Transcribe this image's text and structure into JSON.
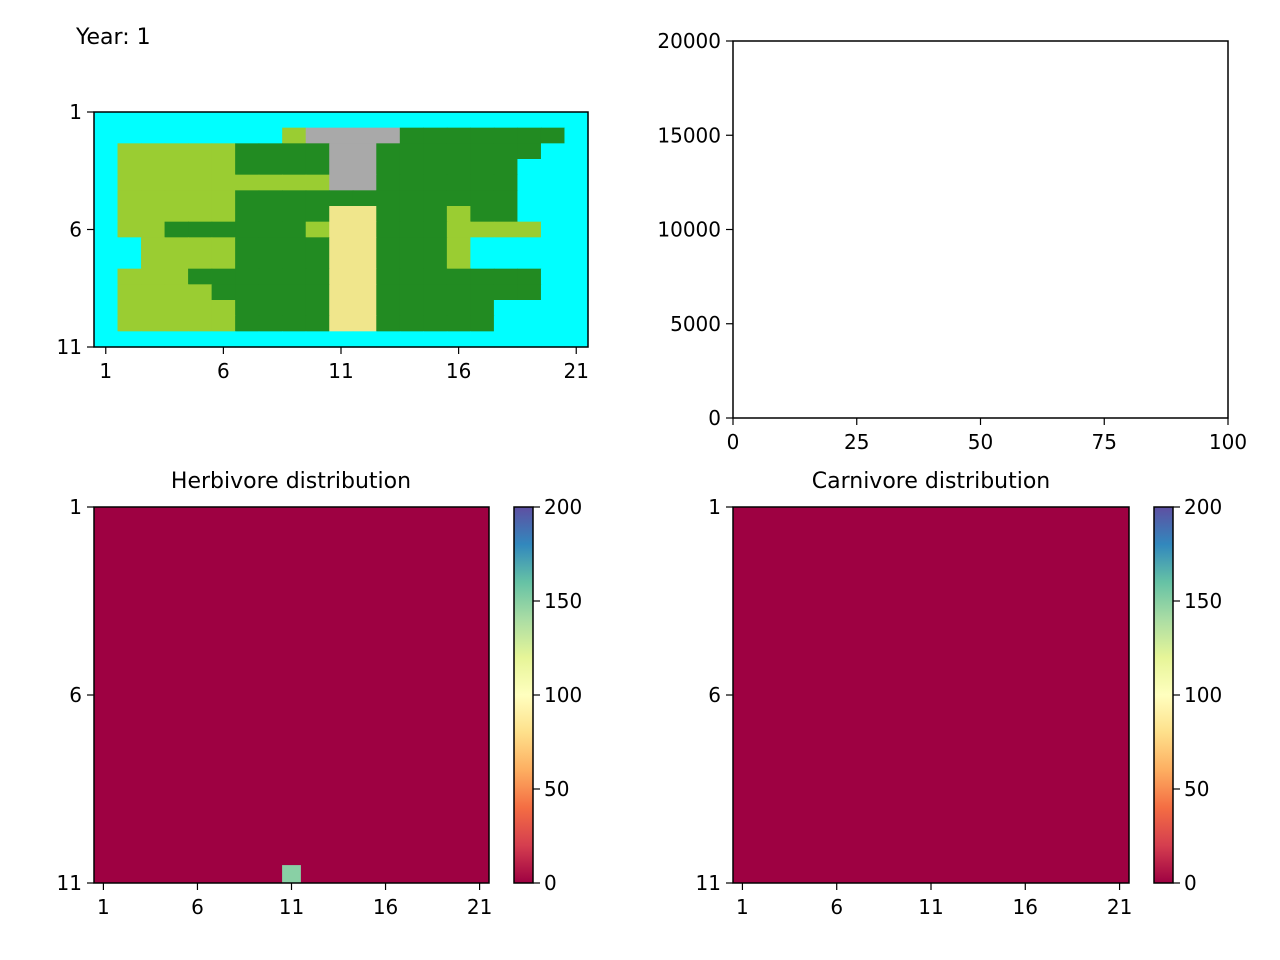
{
  "year_label": "Year: 1",
  "colors": {
    "water": "#00ffff",
    "lowland": "#228b22",
    "highland": "#9acd32",
    "mountain": "#a9a9a9",
    "desert": "#f0e68c"
  },
  "chart_data": [
    {
      "type": "heatmap",
      "id": "island-map",
      "title": "",
      "xticks": [
        "1",
        "6",
        "11",
        "16",
        "21"
      ],
      "yticks": [
        "1",
        "6",
        "11"
      ],
      "legend": {
        "W": "water",
        "L": "lowland",
        "H": "highland",
        "M": "mountain",
        "D": "desert"
      },
      "grid": [
        "WWWWWWWWWWWWWWWWWWWWW",
        "WWWWWWWWHMMMMLLLLLLLW",
        "WHHHHHLLLLMMLLLLLLLWW",
        "WHHHHHLLLLMMLLLLLLWWW",
        "WHHHHHHHHHMMLLLLLLWWW",
        "WHHHHHLLLLLLLLLLLLWWW",
        "WHHHHHLLLLDDLLLHLLWWW",
        "WHHLLLLLLHDDLLLHHHHWW",
        "WWHHHHLLLLDDLLLHWWWWW",
        "WWHHHHLLLLDDLLLHWWWWW",
        "WHHHLLLLLLDDLLLLLLLWW",
        "WHHHHLLLLLDDLLLLLLLWW",
        "WHHHHHLLLLDDLLLLLWWWW",
        "WHHHHHLLLLDDLLLLLWWWW",
        "WWWWWWWWWWWWWWWWWWWWW"
      ]
    },
    {
      "type": "line",
      "id": "population-plot",
      "title": "",
      "xlim": [
        0,
        100
      ],
      "ylim": [
        0,
        20000
      ],
      "xticks": [
        "0",
        "25",
        "50",
        "75",
        "100"
      ],
      "yticks": [
        "0",
        "5000",
        "10000",
        "15000",
        "20000"
      ],
      "series": []
    },
    {
      "type": "heatmap",
      "id": "herbivore-distribution",
      "title": "Herbivore distribution",
      "xticks": [
        "1",
        "6",
        "11",
        "16",
        "21"
      ],
      "yticks": [
        "1",
        "6",
        "11"
      ],
      "vmin": 0,
      "vmax": 200,
      "colorbar_ticks": [
        "0",
        "50",
        "100",
        "150",
        "200"
      ],
      "background_value": 0,
      "cells": [
        {
          "row": 11,
          "col": 11,
          "value": 150
        }
      ]
    },
    {
      "type": "heatmap",
      "id": "carnivore-distribution",
      "title": "Carnivore distribution",
      "xticks": [
        "1",
        "6",
        "11",
        "16",
        "21"
      ],
      "yticks": [
        "1",
        "6",
        "11"
      ],
      "vmin": 0,
      "vmax": 200,
      "colorbar_ticks": [
        "0",
        "50",
        "100",
        "150",
        "200"
      ],
      "background_value": 0,
      "cells": []
    }
  ]
}
